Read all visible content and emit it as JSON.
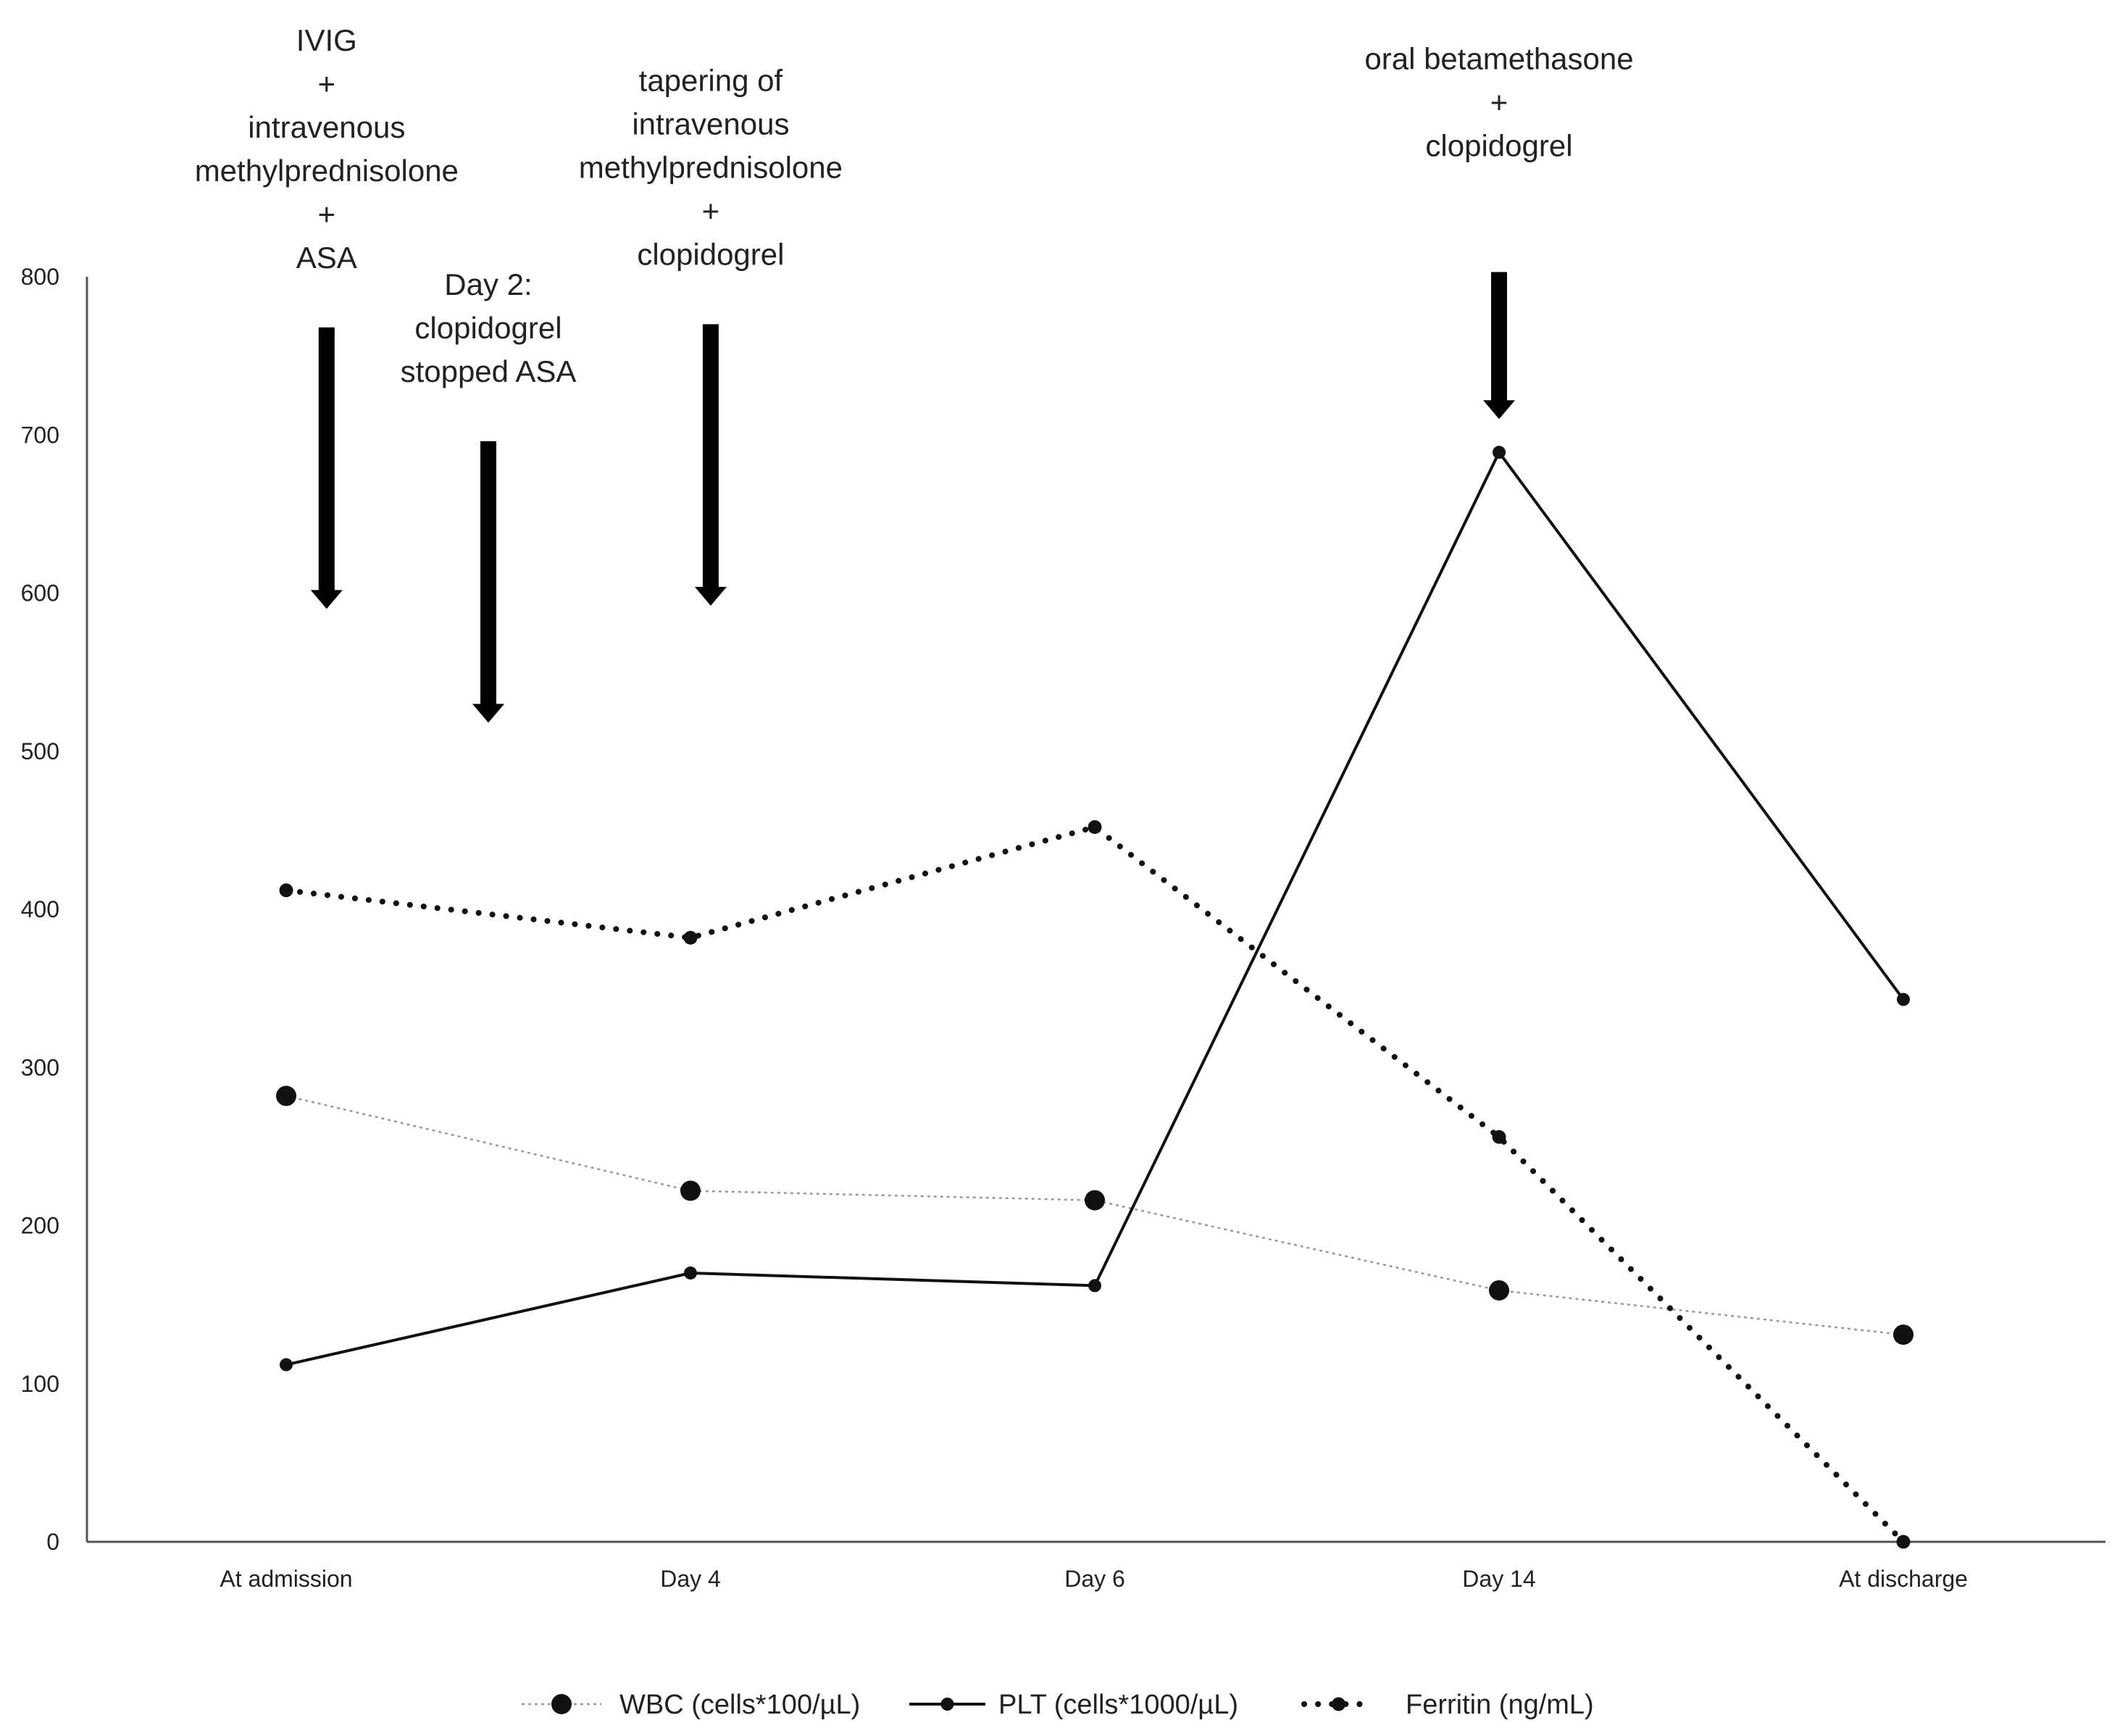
{
  "chart_data": {
    "type": "line",
    "title": "",
    "xlabel": "",
    "ylabel": "",
    "categories": [
      "At admission",
      "Day 4",
      "Day 6",
      "Day 14",
      "At discharge"
    ],
    "ylim": [
      0,
      800
    ],
    "yticks": [
      0,
      100,
      200,
      300,
      400,
      500,
      600,
      700,
      800
    ],
    "grid": false,
    "legend_position": "bottom",
    "series": [
      {
        "name": "WBC (cells*100/µL)",
        "values": [
          282,
          222,
          216,
          159,
          131
        ],
        "line_style": "thin-dotted",
        "marker": "large-dot",
        "color": "#999999"
      },
      {
        "name": "PLT (cells*1000/µL)",
        "values": [
          112,
          170,
          162,
          689,
          343
        ],
        "line_style": "solid",
        "marker": "small-dot",
        "color": "#111111"
      },
      {
        "name": "Ferritin (ng/mL)",
        "values": [
          412,
          382,
          452,
          256,
          0
        ],
        "line_style": "bold-dotted",
        "marker": "small-dot",
        "color": "#111111"
      }
    ],
    "annotations": [
      {
        "id": "admission",
        "lines": [
          "IVIG",
          "+",
          "intravenous",
          "methylprednisolone",
          "+",
          "ASA"
        ],
        "x_position": 0.1,
        "arrow_top": 768,
        "arrow_bottom": 590
      },
      {
        "id": "day2",
        "lines": [
          "Day 2:",
          "clopidogrel",
          "stopped ASA"
        ],
        "x_position": 0.5,
        "arrow_top": 696,
        "arrow_bottom": 518
      },
      {
        "id": "day4",
        "lines": [
          "tapering of",
          "intravenous",
          "methylprednisolone",
          "+",
          "clopidogrel"
        ],
        "x_position": 1.05,
        "arrow_top": 770,
        "arrow_bottom": 592
      },
      {
        "id": "day14",
        "lines": [
          "oral  betamethasone",
          "+",
          "clopidogrel"
        ],
        "x_position": 3,
        "arrow_top": 803,
        "arrow_bottom": 710
      }
    ]
  }
}
